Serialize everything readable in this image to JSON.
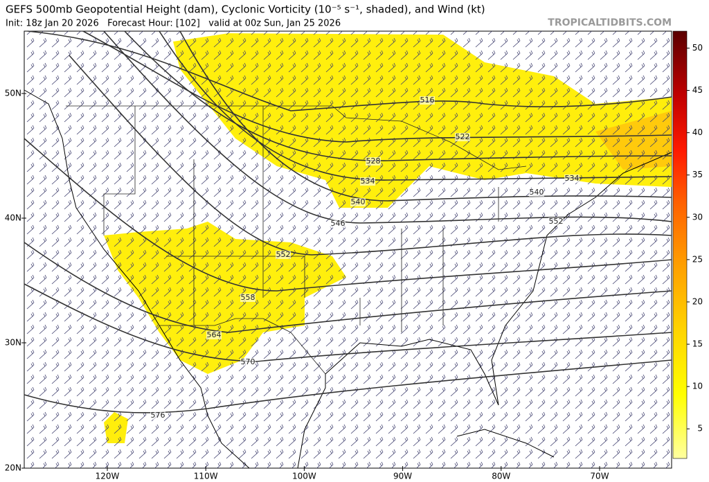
{
  "header": {
    "title": "GEFS 500mb Geopotential Height (dam), Cyclonic Vorticity (10⁻⁵ s⁻¹, shaded), and Wind (kt)",
    "subtitle": "Init: 18z Jan 20 2026   Forecast Hour: [102]   valid at 00z Sun, Jan 25 2026",
    "source": "TROPICALTIDBITS.COM"
  },
  "map": {
    "latitude_labels": [
      "50N",
      "40N",
      "30N",
      "20N"
    ],
    "longitude_labels": [
      "120W",
      "110W",
      "100W",
      "90W",
      "80W",
      "70W"
    ],
    "contour_labels": [
      516,
      522,
      528,
      534,
      534,
      540,
      540,
      546,
      552,
      552,
      558,
      564,
      570,
      576
    ]
  },
  "colorbar": {
    "ticks": [
      5,
      10,
      15,
      20,
      25,
      30,
      35,
      40,
      45,
      50
    ]
  }
}
